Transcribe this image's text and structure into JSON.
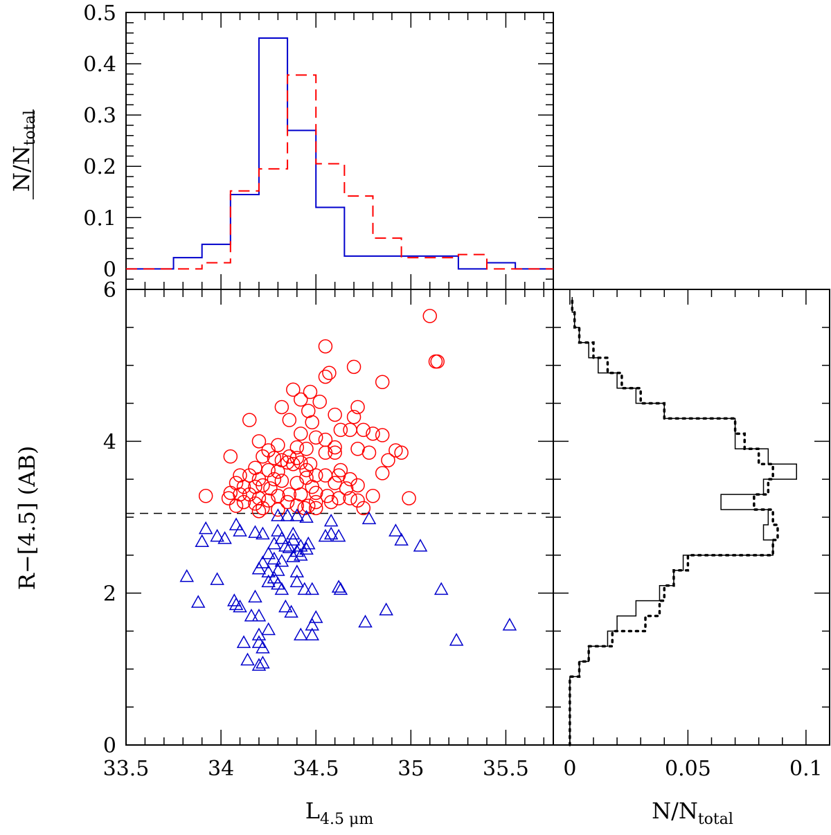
{
  "chart_data": [
    {
      "type": "step",
      "panel": "top-histogram",
      "xlim": [
        33.5,
        35.75
      ],
      "ylim": [
        -0.04,
        0.5
      ],
      "yticks": [
        "0.5",
        "0.4",
        "0.3",
        "0.2",
        "0.1",
        "0",
        "6"
      ],
      "ylabel": {
        "main": "N/N",
        "sub": "total"
      },
      "bin_edges": [
        33.5,
        33.75,
        33.9,
        34.05,
        34.2,
        34.35,
        34.5,
        34.65,
        34.8,
        34.95,
        35.25,
        35.4,
        35.55,
        35.75
      ],
      "series": [
        {
          "name": "blue",
          "color": "#0000cc",
          "dash": "solid",
          "values": [
            0.0,
            0.022,
            0.048,
            0.145,
            0.45,
            0.27,
            0.12,
            0.025,
            0.025,
            0.025,
            0.0,
            0.012,
            0.0
          ]
        },
        {
          "name": "red",
          "color": "#ff0000",
          "dash": "dashed",
          "values": [
            0.0,
            0.0,
            0.012,
            0.152,
            0.195,
            0.378,
            0.205,
            0.142,
            0.06,
            0.022,
            0.028,
            0.0,
            0.0
          ]
        }
      ]
    },
    {
      "type": "scatter",
      "panel": "main",
      "xlim": [
        33.5,
        35.75
      ],
      "ylim": [
        0,
        6
      ],
      "xticks": [
        "33.5",
        "34",
        "34.5",
        "35",
        "35.5"
      ],
      "yticks": [
        "4",
        "2",
        "0"
      ],
      "xlabel": {
        "main": "L",
        "sub": "4.5 μm"
      },
      "ylabel": "R−[4.5] (AB)",
      "threshold_y": 3.05,
      "series": [
        {
          "name": "red",
          "marker": "circle",
          "color": "#ff0000",
          "points": [
            [
              35.1,
              5.65
            ],
            [
              34.55,
              5.25
            ],
            [
              35.13,
              5.05
            ],
            [
              35.14,
              5.05
            ],
            [
              34.57,
              4.9
            ],
            [
              34.55,
              4.85
            ],
            [
              34.7,
              4.98
            ],
            [
              34.85,
              4.78
            ],
            [
              34.38,
              4.68
            ],
            [
              34.47,
              4.65
            ],
            [
              34.42,
              4.55
            ],
            [
              34.52,
              4.52
            ],
            [
              34.72,
              4.45
            ],
            [
              34.32,
              4.45
            ],
            [
              34.46,
              4.4
            ],
            [
              34.6,
              4.35
            ],
            [
              34.7,
              4.32
            ],
            [
              34.15,
              4.28
            ],
            [
              34.36,
              4.28
            ],
            [
              34.48,
              4.25
            ],
            [
              34.63,
              4.15
            ],
            [
              34.68,
              4.15
            ],
            [
              34.75,
              4.15
            ],
            [
              34.8,
              4.1
            ],
            [
              34.85,
              4.08
            ],
            [
              34.42,
              4.1
            ],
            [
              34.5,
              4.05
            ],
            [
              34.55,
              4.02
            ],
            [
              34.2,
              4.0
            ],
            [
              34.3,
              3.95
            ],
            [
              34.4,
              3.92
            ],
            [
              34.45,
              3.9
            ],
            [
              34.6,
              3.92
            ],
            [
              34.25,
              3.88
            ],
            [
              34.72,
              3.9
            ],
            [
              34.78,
              3.85
            ],
            [
              34.92,
              3.88
            ],
            [
              34.95,
              3.85
            ],
            [
              34.88,
              3.75
            ],
            [
              34.05,
              3.8
            ],
            [
              34.22,
              3.8
            ],
            [
              34.28,
              3.78
            ],
            [
              34.32,
              3.75
            ],
            [
              34.35,
              3.72
            ],
            [
              34.38,
              3.7
            ],
            [
              34.4,
              3.78
            ],
            [
              34.36,
              3.8
            ],
            [
              34.42,
              3.72
            ],
            [
              34.47,
              3.7
            ],
            [
              34.55,
              3.85
            ],
            [
              34.6,
              3.85
            ],
            [
              34.18,
              3.65
            ],
            [
              34.25,
              3.62
            ],
            [
              34.3,
              3.6
            ],
            [
              34.45,
              3.62
            ],
            [
              34.63,
              3.62
            ],
            [
              34.1,
              3.55
            ],
            [
              34.15,
              3.55
            ],
            [
              34.2,
              3.5
            ],
            [
              34.28,
              3.5
            ],
            [
              34.32,
              3.48
            ],
            [
              34.45,
              3.52
            ],
            [
              34.5,
              3.55
            ],
            [
              34.55,
              3.55
            ],
            [
              34.62,
              3.55
            ],
            [
              34.68,
              3.5
            ],
            [
              34.72,
              3.42
            ],
            [
              34.85,
              3.58
            ],
            [
              34.08,
              3.45
            ],
            [
              34.12,
              3.4
            ],
            [
              34.18,
              3.4
            ],
            [
              34.22,
              3.42
            ],
            [
              34.26,
              3.38
            ],
            [
              34.4,
              3.45
            ],
            [
              34.48,
              3.4
            ],
            [
              34.6,
              3.45
            ],
            [
              34.66,
              3.38
            ],
            [
              34.05,
              3.32
            ],
            [
              34.1,
              3.3
            ],
            [
              34.15,
              3.3
            ],
            [
              34.2,
              3.25
            ],
            [
              34.3,
              3.28
            ],
            [
              34.36,
              3.3
            ],
            [
              34.42,
              3.3
            ],
            [
              34.5,
              3.32
            ],
            [
              34.56,
              3.28
            ],
            [
              34.62,
              3.25
            ],
            [
              34.68,
              3.25
            ],
            [
              34.72,
              3.22
            ],
            [
              34.8,
              3.28
            ],
            [
              33.92,
              3.28
            ],
            [
              34.04,
              3.25
            ],
            [
              34.12,
              3.2
            ],
            [
              34.18,
              3.18
            ],
            [
              34.25,
              3.22
            ],
            [
              34.35,
              3.2
            ],
            [
              34.4,
              3.15
            ],
            [
              34.46,
              3.15
            ],
            [
              34.5,
              3.2
            ],
            [
              34.58,
              3.2
            ],
            [
              34.08,
              3.15
            ],
            [
              34.22,
              3.12
            ],
            [
              34.3,
              3.1
            ],
            [
              34.44,
              3.12
            ],
            [
              34.5,
              3.12
            ],
            [
              34.75,
              3.12
            ],
            [
              34.99,
              3.25
            ],
            [
              34.2,
              3.08
            ]
          ]
        },
        {
          "name": "blue",
          "marker": "triangle",
          "color": "#0000cc",
          "points": [
            [
              34.3,
              3.02
            ],
            [
              34.35,
              3.02
            ],
            [
              34.4,
              3.02
            ],
            [
              34.45,
              3.0
            ],
            [
              34.58,
              2.95
            ],
            [
              34.78,
              2.98
            ],
            [
              34.1,
              2.82
            ],
            [
              34.18,
              2.8
            ],
            [
              34.22,
              2.78
            ],
            [
              34.55,
              2.75
            ],
            [
              34.58,
              2.78
            ],
            [
              34.62,
              2.75
            ],
            [
              34.32,
              2.72
            ],
            [
              34.38,
              2.7
            ],
            [
              34.28,
              2.65
            ],
            [
              34.34,
              2.62
            ],
            [
              34.42,
              2.62
            ],
            [
              34.46,
              2.65
            ],
            [
              34.36,
              2.6
            ],
            [
              34.4,
              2.55
            ],
            [
              34.45,
              2.58
            ],
            [
              33.92,
              2.85
            ],
            [
              33.98,
              2.75
            ],
            [
              33.9,
              2.68
            ],
            [
              34.02,
              2.72
            ],
            [
              34.08,
              2.9
            ],
            [
              34.92,
              2.82
            ],
            [
              34.95,
              2.7
            ],
            [
              35.05,
              2.62
            ],
            [
              34.3,
              2.82
            ],
            [
              34.38,
              2.78
            ],
            [
              34.25,
              2.52
            ],
            [
              34.28,
              2.45
            ],
            [
              34.32,
              2.42
            ],
            [
              34.38,
              2.48
            ],
            [
              34.42,
              2.5
            ],
            [
              34.22,
              2.4
            ],
            [
              34.2,
              2.32
            ],
            [
              34.25,
              2.28
            ],
            [
              34.3,
              2.3
            ],
            [
              34.28,
              2.2
            ],
            [
              34.25,
              2.15
            ],
            [
              34.3,
              2.12
            ],
            [
              34.32,
              2.05
            ],
            [
              34.4,
              2.28
            ],
            [
              34.4,
              2.15
            ],
            [
              33.82,
              2.22
            ],
            [
              33.98,
              2.18
            ],
            [
              34.44,
              2.05
            ],
            [
              34.48,
              2.05
            ],
            [
              34.63,
              2.05
            ],
            [
              34.62,
              2.08
            ],
            [
              35.16,
              2.05
            ],
            [
              33.88,
              1.88
            ],
            [
              34.07,
              1.9
            ],
            [
              34.1,
              1.82
            ],
            [
              34.08,
              1.85
            ],
            [
              34.18,
              1.95
            ],
            [
              34.34,
              1.82
            ],
            [
              34.37,
              1.75
            ],
            [
              34.2,
              1.7
            ],
            [
              34.5,
              1.68
            ],
            [
              34.48,
              1.58
            ],
            [
              34.48,
              1.45
            ],
            [
              34.76,
              1.62
            ],
            [
              34.87,
              1.78
            ],
            [
              35.24,
              1.38
            ],
            [
              35.52,
              1.58
            ],
            [
              34.25,
              1.52
            ],
            [
              34.2,
              1.45
            ],
            [
              34.12,
              1.35
            ],
            [
              34.2,
              1.35
            ],
            [
              34.22,
              1.28
            ],
            [
              34.42,
              1.45
            ],
            [
              34.14,
              1.12
            ],
            [
              34.2,
              1.05
            ],
            [
              34.22,
              1.08
            ],
            [
              34.16,
              1.7
            ]
          ]
        }
      ]
    },
    {
      "type": "step-horizontal",
      "panel": "right-histogram",
      "xlim": [
        -0.007,
        0.11
      ],
      "ylim": [
        0,
        6
      ],
      "xticks": [
        "0",
        "0.05",
        "0.1"
      ],
      "xlabel": {
        "main": "N/N",
        "sub": "total"
      },
      "bin_edges": [
        0,
        0.9,
        1.1,
        1.3,
        1.5,
        1.7,
        1.9,
        2.1,
        2.3,
        2.5,
        2.7,
        2.9,
        3.1,
        3.3,
        3.5,
        3.7,
        3.9,
        4.1,
        4.3,
        4.5,
        4.7,
        4.9,
        5.1,
        5.3,
        5.5,
        5.7,
        5.9
      ],
      "series": [
        {
          "name": "solid",
          "color": "#000000",
          "dash": "solid",
          "values": [
            0.0,
            0.004,
            0.008,
            0.016,
            0.02,
            0.028,
            0.038,
            0.044,
            0.048,
            0.086,
            0.082,
            0.084,
            0.064,
            0.082,
            0.096,
            0.084,
            0.07,
            0.07,
            0.04,
            0.028,
            0.02,
            0.012,
            0.008,
            0.004,
            0.002,
            0.001
          ]
        },
        {
          "name": "dotted",
          "color": "#000000",
          "dash": "dotted",
          "values": [
            0.0,
            0.004,
            0.008,
            0.018,
            0.032,
            0.038,
            0.04,
            0.044,
            0.05,
            0.086,
            0.088,
            0.086,
            0.078,
            0.084,
            0.086,
            0.08,
            0.074,
            0.07,
            0.04,
            0.03,
            0.022,
            0.016,
            0.01,
            0.004,
            0.002,
            0.001
          ]
        }
      ]
    }
  ]
}
